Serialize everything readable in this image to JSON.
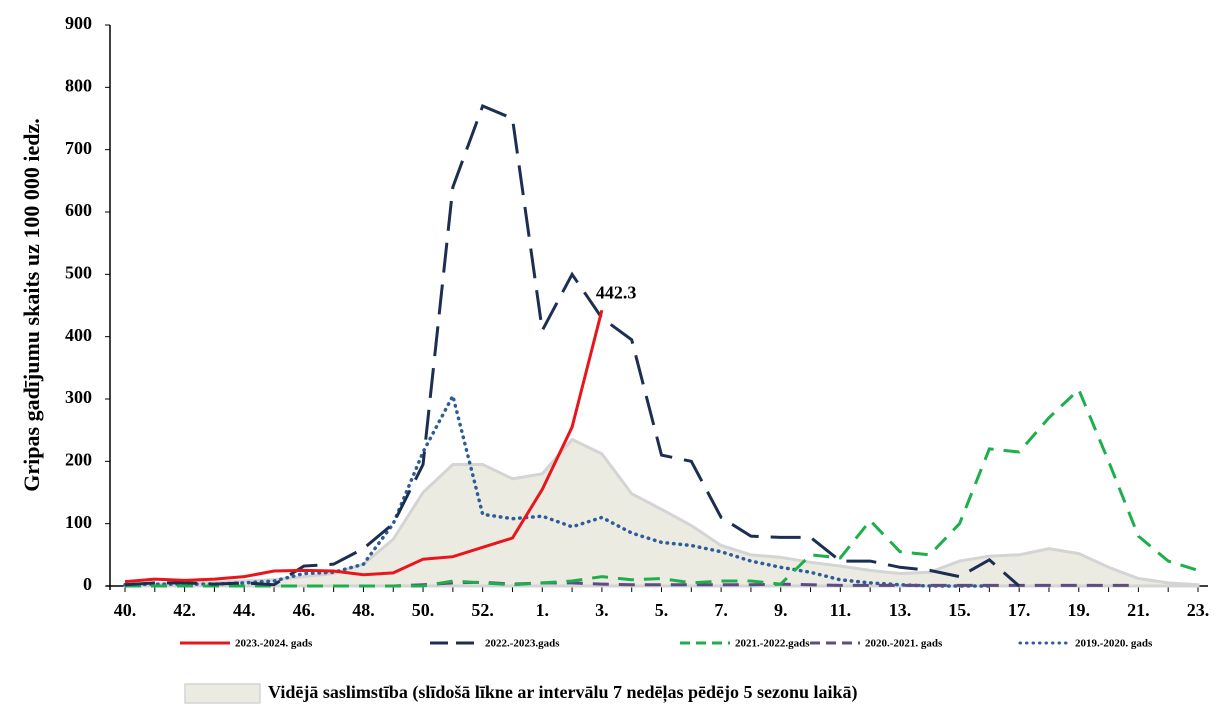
{
  "chart_data": {
    "type": "line",
    "y_label": "Gripas gadījumu skaits uz 100 000 iedz.",
    "categories": [
      "40.",
      null,
      "42.",
      null,
      "44.",
      null,
      "46.",
      null,
      "48.",
      null,
      "50.",
      null,
      "52.",
      null,
      "1.",
      null,
      "3.",
      null,
      "5.",
      null,
      "7.",
      null,
      "9.",
      null,
      "11.",
      null,
      "13.",
      null,
      "15.",
      null,
      "17.",
      null,
      "19.",
      null,
      "21.",
      null,
      "23."
    ],
    "ylim": [
      0,
      900
    ],
    "yticks": [
      0,
      100,
      200,
      300,
      400,
      500,
      600,
      700,
      800,
      900
    ],
    "grid": false,
    "area": {
      "name": "Vidējā saslimstība (slīdošā līkne ar intervālu 7 nedēļas pēdējo 5 sezonu laikā)",
      "color": "#ecebe2",
      "edge_color": "#d4d4d4",
      "values": [
        2,
        3,
        5,
        6,
        8,
        10,
        15,
        20,
        35,
        75,
        150,
        195,
        195,
        172,
        180,
        235,
        212,
        148,
        123,
        97,
        65,
        50,
        46,
        38,
        32,
        25,
        20,
        22,
        40,
        48,
        50,
        60,
        52,
        30,
        12,
        5,
        2
      ]
    },
    "series": [
      {
        "name": "2023.-2024. gads",
        "color": "#e8161b",
        "style": "solid",
        "values": [
          7,
          11,
          9,
          11,
          15,
          24,
          25,
          24,
          18,
          21,
          43,
          47,
          62,
          77,
          155,
          255,
          442.3,
          null,
          null,
          null,
          null,
          null,
          null,
          null,
          null,
          null,
          null,
          null,
          null,
          null,
          null,
          null,
          null,
          null,
          null,
          null,
          null
        ]
      },
      {
        "name": "2022.-2023.gads",
        "color": "#1c2f52",
        "style": "long-dash",
        "values": [
          2,
          5,
          5,
          3,
          5,
          2,
          32,
          35,
          60,
          100,
          195,
          640,
          770,
          750,
          410,
          500,
          430,
          395,
          210,
          200,
          110,
          80,
          78,
          78,
          40,
          40,
          30,
          25,
          15,
          42,
          0,
          null,
          null,
          null,
          null,
          null,
          null
        ]
      },
      {
        "name": "2021.-2022.gads",
        "color": "#1daf4b",
        "style": "dash",
        "values": [
          0,
          0,
          0,
          0,
          0,
          0,
          0,
          0,
          0,
          0,
          0,
          8,
          5,
          2,
          5,
          8,
          15,
          10,
          12,
          5,
          8,
          8,
          3,
          50,
          45,
          105,
          55,
          50,
          100,
          220,
          215,
          270,
          315,
          200,
          80,
          40,
          25
        ]
      },
      {
        "name": "2020.-2021. gads",
        "color": "#5e4b82",
        "style": "dash",
        "values": [
          0,
          0,
          0,
          0,
          0,
          0,
          0,
          0,
          0,
          0,
          2,
          5,
          6,
          3,
          5,
          5,
          3,
          2,
          2,
          2,
          2,
          2,
          3,
          2,
          1,
          1,
          1,
          1,
          1,
          1,
          1,
          1,
          1,
          1,
          1,
          null,
          null
        ]
      },
      {
        "name": "2019.-2020. gads",
        "color": "#2d5c9a",
        "style": "dot",
        "values": [
          2,
          3,
          3,
          3,
          5,
          8,
          20,
          22,
          35,
          100,
          215,
          305,
          115,
          108,
          112,
          95,
          110,
          85,
          70,
          65,
          55,
          40,
          30,
          22,
          10,
          5,
          2,
          0,
          0,
          0,
          null,
          null,
          null,
          null,
          null,
          null,
          null
        ]
      }
    ],
    "annotation_index": [
      0,
      16
    ]
  }
}
